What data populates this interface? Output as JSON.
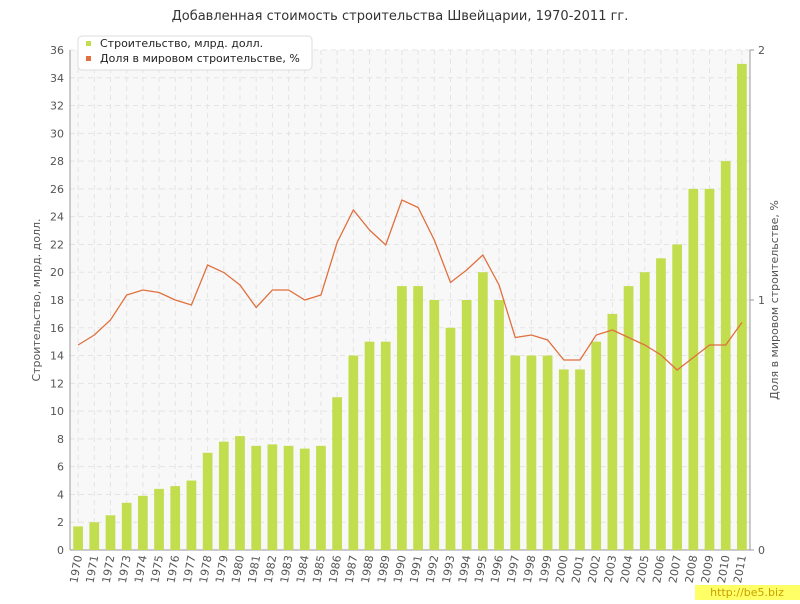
{
  "chart_data": {
    "type": "bar-line",
    "title": "Добавленная стоимость строительства Швейцарии, 1970-2011 гг.",
    "y_label": "Строительство, млрд. долл.",
    "y2_label": "Доля в мировом строительстве, %",
    "watermark": "http://be5.biz",
    "legend": "top-left",
    "grid": true,
    "categories": [
      "1970",
      "1971",
      "1972",
      "1973",
      "1974",
      "1975",
      "1976",
      "1977",
      "1978",
      "1979",
      "1980",
      "1981",
      "1982",
      "1983",
      "1984",
      "1985",
      "1986",
      "1987",
      "1988",
      "1989",
      "1990",
      "1991",
      "1992",
      "1993",
      "1994",
      "1995",
      "1996",
      "1997",
      "1998",
      "1999",
      "2000",
      "2001",
      "2002",
      "2003",
      "2004",
      "2005",
      "2006",
      "2007",
      "2008",
      "2009",
      "2010",
      "2011"
    ],
    "series": [
      {
        "name": "Строительство, млрд. долл.",
        "type": "bar",
        "color": "#c2dd4e",
        "values": [
          1.7,
          2.0,
          2.5,
          3.4,
          3.9,
          4.4,
          4.6,
          5.0,
          7.0,
          7.8,
          8.2,
          7.5,
          7.6,
          7.5,
          7.3,
          7.5,
          11,
          14,
          15,
          15,
          19,
          19,
          18,
          16,
          18,
          20,
          18,
          14,
          14,
          14,
          13,
          13,
          15,
          17,
          19,
          20,
          21,
          22,
          26,
          26,
          28,
          35
        ]
      },
      {
        "name": "Доля в мировом строительстве, %",
        "type": "line",
        "axis": "y2",
        "color": "#e0703f",
        "values": [
          0.82,
          0.86,
          0.92,
          1.02,
          1.04,
          1.03,
          1.0,
          0.98,
          1.14,
          1.11,
          1.06,
          0.97,
          1.04,
          1.04,
          1.0,
          1.02,
          1.23,
          1.36,
          1.28,
          1.22,
          1.4,
          1.37,
          1.24,
          1.07,
          1.12,
          1.18,
          1.06,
          0.85,
          0.86,
          0.84,
          0.76,
          0.76,
          0.86,
          0.88,
          0.85,
          0.82,
          0.78,
          0.72,
          0.77,
          0.82,
          0.82,
          0.91
        ]
      }
    ],
    "ylim": [
      0,
      36
    ],
    "yticks": [
      0,
      2,
      4,
      6,
      8,
      10,
      12,
      14,
      16,
      18,
      20,
      22,
      24,
      26,
      28,
      30,
      32,
      34,
      36
    ],
    "y2lim": [
      0,
      2
    ],
    "y2ticks": [
      0,
      1,
      2
    ]
  }
}
